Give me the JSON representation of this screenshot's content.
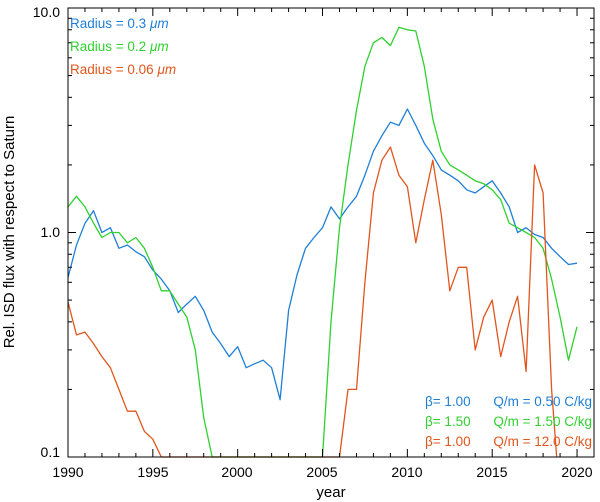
{
  "chart_data": {
    "type": "line",
    "title": "",
    "xlabel": "year",
    "ylabel": "Rel. ISD flux with respect to Saturn",
    "xlim": [
      1990,
      2021
    ],
    "ylim": [
      0.1,
      10.0
    ],
    "yscale": "log",
    "x_ticks": [
      "1990",
      "1995",
      "2000",
      "2005",
      "2010",
      "2015",
      "2020"
    ],
    "y_ticks": [
      "0.1",
      "1.0",
      "10.0"
    ],
    "legend": [
      {
        "label_start": "Radius = 0.3 ",
        "unit": "μm",
        "color": "#1f7fd6"
      },
      {
        "label_start": "Radius = 0.2 ",
        "unit": "μm",
        "color": "#2fd12f"
      },
      {
        "label_start": "Radius = 0.06 ",
        "unit": "μm",
        "color": "#e0561d"
      }
    ],
    "annotations": [
      {
        "beta": "β= 1.00",
        "qm": "Q/m = 0.50  C/kg",
        "color": "#1f7fd6"
      },
      {
        "beta": "β= 1.50",
        "qm": "Q/m = 1.50  C/kg",
        "color": "#2fd12f"
      },
      {
        "beta": "β= 1.00",
        "qm": "Q/m = 12.0  C/kg",
        "color": "#e0561d"
      }
    ],
    "series": [
      {
        "name": "Radius = 0.3 μm",
        "color": "#1f7fd6",
        "points": [
          [
            1990,
            0.63
          ],
          [
            1990.5,
            0.88
          ],
          [
            1991,
            1.1
          ],
          [
            1991.5,
            1.25
          ],
          [
            1992,
            1.0
          ],
          [
            1992.5,
            1.05
          ],
          [
            1993,
            0.85
          ],
          [
            1993.5,
            0.88
          ],
          [
            1994,
            0.82
          ],
          [
            1994.5,
            0.78
          ],
          [
            1995,
            0.68
          ],
          [
            1995.5,
            0.62
          ],
          [
            1996,
            0.55
          ],
          [
            1996.5,
            0.44
          ],
          [
            1997,
            0.48
          ],
          [
            1997.5,
            0.52
          ],
          [
            1998,
            0.45
          ],
          [
            1998.5,
            0.36
          ],
          [
            1999,
            0.32
          ],
          [
            1999.5,
            0.28
          ],
          [
            2000,
            0.31
          ],
          [
            2000.5,
            0.25
          ],
          [
            2001,
            0.26
          ],
          [
            2001.5,
            0.27
          ],
          [
            2002,
            0.25
          ],
          [
            2002.5,
            0.18
          ],
          [
            2003,
            0.45
          ],
          [
            2003.5,
            0.65
          ],
          [
            2004,
            0.85
          ],
          [
            2004.5,
            0.95
          ],
          [
            2005,
            1.05
          ],
          [
            2005.5,
            1.3
          ],
          [
            2006,
            1.15
          ],
          [
            2006.5,
            1.3
          ],
          [
            2007,
            1.45
          ],
          [
            2007.5,
            1.8
          ],
          [
            2008,
            2.3
          ],
          [
            2008.5,
            2.7
          ],
          [
            2009,
            3.1
          ],
          [
            2009.5,
            3.0
          ],
          [
            2010,
            3.55
          ],
          [
            2010.5,
            3.0
          ],
          [
            2011,
            2.5
          ],
          [
            2011.5,
            2.2
          ],
          [
            2012,
            1.9
          ],
          [
            2012.5,
            1.8
          ],
          [
            2013,
            1.7
          ],
          [
            2013.5,
            1.55
          ],
          [
            2014,
            1.5
          ],
          [
            2014.5,
            1.6
          ],
          [
            2015,
            1.7
          ],
          [
            2015.5,
            1.5
          ],
          [
            2016,
            1.3
          ],
          [
            2016.5,
            1.0
          ],
          [
            2017,
            1.05
          ],
          [
            2017.5,
            0.98
          ],
          [
            2018,
            0.95
          ],
          [
            2018.5,
            0.85
          ],
          [
            2019,
            0.78
          ],
          [
            2019.5,
            0.72
          ],
          [
            2020,
            0.73
          ]
        ]
      },
      {
        "name": "Radius = 0.2 μm",
        "color": "#2fd12f",
        "points": [
          [
            1990,
            1.3
          ],
          [
            1990.5,
            1.45
          ],
          [
            1991,
            1.3
          ],
          [
            1991.5,
            1.1
          ],
          [
            1992,
            0.95
          ],
          [
            1992.5,
            1.0
          ],
          [
            1993,
            1.0
          ],
          [
            1993.5,
            0.9
          ],
          [
            1994,
            0.95
          ],
          [
            1994.5,
            0.85
          ],
          [
            1995,
            0.7
          ],
          [
            1995.5,
            0.55
          ],
          [
            1996,
            0.55
          ],
          [
            1996.5,
            0.48
          ],
          [
            1997,
            0.42
          ],
          [
            1997.5,
            0.3
          ],
          [
            1998,
            0.15
          ],
          [
            1998.5,
            0.1
          ],
          [
            2005,
            0.1
          ],
          [
            2005.5,
            0.4
          ],
          [
            2006,
            1.05
          ],
          [
            2006.5,
            2.0
          ],
          [
            2007,
            3.5
          ],
          [
            2007.5,
            5.5
          ],
          [
            2008,
            7.0
          ],
          [
            2008.5,
            7.4
          ],
          [
            2009,
            6.8
          ],
          [
            2009.5,
            8.2
          ],
          [
            2010,
            8.0
          ],
          [
            2010.5,
            7.9
          ],
          [
            2011,
            5.5
          ],
          [
            2011.5,
            3.2
          ],
          [
            2012,
            2.3
          ],
          [
            2012.5,
            2.0
          ],
          [
            2013,
            1.9
          ],
          [
            2013.5,
            1.8
          ],
          [
            2014,
            1.7
          ],
          [
            2014.5,
            1.65
          ],
          [
            2015,
            1.55
          ],
          [
            2015.5,
            1.4
          ],
          [
            2016,
            1.1
          ],
          [
            2016.5,
            1.05
          ],
          [
            2017,
            1.0
          ],
          [
            2017.5,
            0.95
          ],
          [
            2018,
            0.85
          ],
          [
            2018.5,
            0.62
          ],
          [
            2019,
            0.42
          ],
          [
            2019.5,
            0.27
          ],
          [
            2020,
            0.38
          ]
        ]
      },
      {
        "name": "Radius = 0.06 μm",
        "color": "#e0561d",
        "points": [
          [
            1990,
            0.49
          ],
          [
            1990.5,
            0.35
          ],
          [
            1991,
            0.36
          ],
          [
            1991.5,
            0.32
          ],
          [
            1992,
            0.28
          ],
          [
            1992.5,
            0.25
          ],
          [
            1993,
            0.2
          ],
          [
            1993.5,
            0.16
          ],
          [
            1994,
            0.16
          ],
          [
            1994.5,
            0.13
          ],
          [
            1995,
            0.12
          ],
          [
            1995.5,
            0.1
          ],
          [
            2006,
            0.1
          ],
          [
            2006.5,
            0.2
          ],
          [
            2007,
            0.2
          ],
          [
            2007.5,
            0.6
          ],
          [
            2008,
            1.5
          ],
          [
            2008.5,
            2.1
          ],
          [
            2009,
            2.4
          ],
          [
            2009.5,
            1.8
          ],
          [
            2010,
            1.6
          ],
          [
            2010.5,
            0.9
          ],
          [
            2011,
            1.4
          ],
          [
            2011.5,
            2.1
          ],
          [
            2012,
            1.2
          ],
          [
            2012.5,
            0.55
          ],
          [
            2013,
            0.7
          ],
          [
            2013.5,
            0.7
          ],
          [
            2014,
            0.3
          ],
          [
            2014.5,
            0.42
          ],
          [
            2015,
            0.5
          ],
          [
            2015.5,
            0.28
          ],
          [
            2016,
            0.4
          ],
          [
            2016.5,
            0.52
          ],
          [
            2017,
            0.24
          ],
          [
            2017.5,
            2.0
          ],
          [
            2018,
            1.5
          ],
          [
            2018.5,
            0.2
          ],
          [
            2018.8,
            0.1
          ]
        ]
      }
    ]
  }
}
